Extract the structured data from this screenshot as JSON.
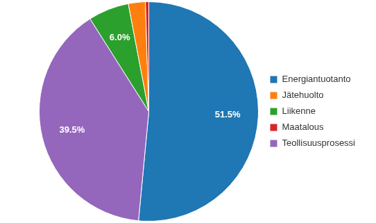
{
  "chart_data": {
    "type": "pie",
    "categories": [
      "Energiantuotanto",
      "Teollisuusprosessi",
      "Liikenne",
      "Jätehuolto",
      "Maatalous"
    ],
    "values": [
      51.5,
      39.5,
      6.0,
      2.5,
      0.5
    ],
    "value_labels": [
      "51.5%",
      "39.5%",
      "6.0%",
      null,
      null
    ],
    "colors": [
      "#1f77b4",
      "#9467bd",
      "#2ca02c",
      "#ff7f0e",
      "#d62728"
    ],
    "data_labels": true,
    "legend": "right"
  }
}
